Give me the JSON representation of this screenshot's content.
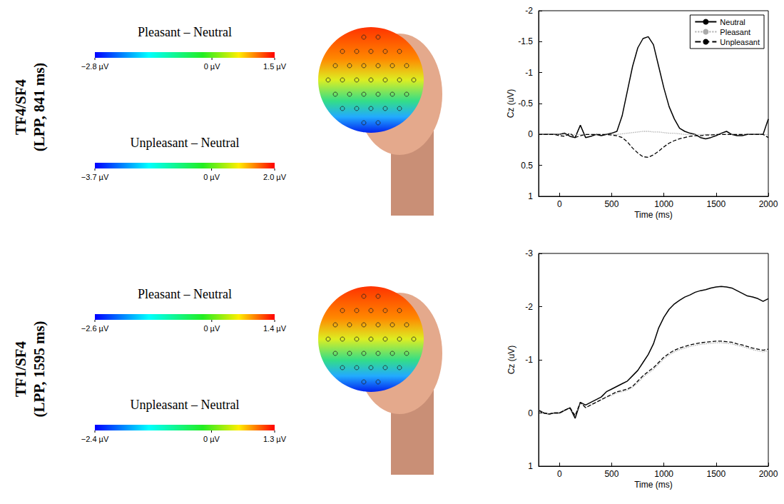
{
  "chart_data": [
    {
      "type": "line",
      "row_label": [
        "TF4/SF4",
        "(LPP, 841 ms)"
      ],
      "maps": [
        {
          "title": "Pleasant – Neutral",
          "range": [
            -2.8,
            1.5
          ],
          "ticks": [
            {
              "value": -2.8,
              "label": "−2.8 µV"
            },
            {
              "value": 0,
              "label": "0 µV"
            },
            {
              "value": 1.5,
              "label": "1.5 µV"
            }
          ]
        },
        {
          "title": "Unpleasant – Neutral",
          "range": [
            -3.7,
            2.0
          ],
          "ticks": [
            {
              "value": -3.7,
              "label": "−3.7 µV"
            },
            {
              "value": 0,
              "label": "0 µV"
            },
            {
              "value": 2.0,
              "label": "2.0 µV"
            }
          ]
        }
      ],
      "x_label": "Time (ms)",
      "y_label": "Cz (uV)",
      "xlim": [
        -200,
        2000
      ],
      "xticks": [
        0,
        500,
        1000,
        1500,
        2000
      ],
      "ylim": [
        -2,
        1
      ],
      "yticks": [
        -2,
        -1.5,
        -1,
        -0.5,
        0,
        0.5,
        1
      ],
      "legend": "upper right",
      "x": [
        -200,
        -150,
        -100,
        -50,
        0,
        50,
        100,
        150,
        200,
        250,
        300,
        350,
        400,
        450,
        500,
        550,
        600,
        650,
        700,
        750,
        800,
        850,
        900,
        950,
        1000,
        1050,
        1100,
        1150,
        1200,
        1250,
        1300,
        1350,
        1400,
        1450,
        1500,
        1550,
        1600,
        1650,
        1700,
        1750,
        1800,
        1850,
        1900,
        1950,
        2000
      ],
      "series": [
        {
          "name": "Neutral",
          "color": "#000000",
          "line_style": "solid",
          "values": [
            0,
            0,
            0,
            0,
            0,
            -0.02,
            0.03,
            0.05,
            -0.15,
            0.05,
            0.03,
            0,
            0.02,
            0,
            -0.02,
            -0.05,
            -0.3,
            -0.7,
            -1.1,
            -1.4,
            -1.55,
            -1.58,
            -1.45,
            -1.1,
            -0.75,
            -0.45,
            -0.25,
            -0.1,
            -0.05,
            -0.02,
            0,
            0.05,
            0.07,
            0.05,
            0.02,
            -0.02,
            -0.05,
            0,
            0.02,
            0.02,
            0,
            0,
            0,
            0,
            -0.25
          ]
        },
        {
          "name": "Pleasant",
          "color": "#aaaaaa",
          "line_style": "dotted",
          "values": [
            0,
            0,
            0,
            0,
            0,
            0,
            0,
            0,
            0,
            0,
            0,
            0,
            0,
            0,
            0,
            0,
            -0.01,
            -0.02,
            -0.03,
            -0.04,
            -0.05,
            -0.05,
            -0.04,
            -0.04,
            -0.03,
            -0.02,
            -0.02,
            -0.01,
            0,
            0,
            0,
            0,
            0,
            0,
            0,
            0,
            0,
            0,
            0,
            0,
            0,
            0,
            0,
            0,
            0
          ]
        },
        {
          "name": "Unpleasant",
          "color": "#000000",
          "line_style": "dashed",
          "values": [
            0,
            0,
            0,
            0,
            0.02,
            0.03,
            -0.02,
            0.05,
            0.02,
            0,
            0,
            0,
            0,
            0,
            0.01,
            0.02,
            0.05,
            0.12,
            0.22,
            0.3,
            0.36,
            0.37,
            0.33,
            0.27,
            0.2,
            0.14,
            0.1,
            0.07,
            0.05,
            0.03,
            0.02,
            0.02,
            0.01,
            0.01,
            0,
            0,
            0,
            0,
            0,
            0,
            0,
            0,
            0,
            0,
            0.05
          ]
        }
      ]
    },
    {
      "type": "line",
      "row_label": [
        "TF1/SF4",
        "(LPP, 1595 ms)"
      ],
      "maps": [
        {
          "title": "Pleasant – Neutral",
          "range": [
            -2.6,
            1.4
          ],
          "ticks": [
            {
              "value": -2.6,
              "label": "−2.6 µV"
            },
            {
              "value": 0,
              "label": "0 µV"
            },
            {
              "value": 1.4,
              "label": "1.4 µV"
            }
          ]
        },
        {
          "title": "Unpleasant – Neutral",
          "range": [
            -2.4,
            1.3
          ],
          "ticks": [
            {
              "value": -2.4,
              "label": "−2.4 µV"
            },
            {
              "value": 0,
              "label": "0 µV"
            },
            {
              "value": 1.3,
              "label": "1.3 µV"
            }
          ]
        }
      ],
      "x_label": "Time (ms)",
      "y_label": "Cz (uV)",
      "xlim": [
        -200,
        2000
      ],
      "xticks": [
        0,
        500,
        1000,
        1500,
        2000
      ],
      "ylim": [
        -3,
        1
      ],
      "yticks": [
        -3,
        -2,
        -1,
        0,
        1
      ],
      "x": [
        -200,
        -150,
        -100,
        -50,
        0,
        50,
        100,
        150,
        200,
        250,
        300,
        350,
        400,
        450,
        500,
        550,
        600,
        650,
        700,
        750,
        800,
        850,
        900,
        950,
        1000,
        1050,
        1100,
        1150,
        1200,
        1250,
        1300,
        1350,
        1400,
        1450,
        1500,
        1550,
        1600,
        1650,
        1700,
        1750,
        1800,
        1850,
        1900,
        1950,
        2000
      ],
      "series": [
        {
          "name": "Neutral",
          "color": "#000000",
          "line_style": "solid",
          "values": [
            -0.05,
            0,
            0.02,
            0,
            0,
            -0.05,
            -0.1,
            0.1,
            -0.2,
            -0.15,
            -0.2,
            -0.25,
            -0.3,
            -0.4,
            -0.45,
            -0.5,
            -0.55,
            -0.6,
            -0.7,
            -0.8,
            -0.95,
            -1.1,
            -1.3,
            -1.6,
            -1.8,
            -1.95,
            -2.05,
            -2.12,
            -2.18,
            -2.22,
            -2.27,
            -2.3,
            -2.32,
            -2.35,
            -2.37,
            -2.38,
            -2.37,
            -2.35,
            -2.3,
            -2.25,
            -2.2,
            -2.18,
            -2.15,
            -2.1,
            -2.15
          ]
        },
        {
          "name": "Pleasant",
          "color": "#aaaaaa",
          "line_style": "dotted",
          "values": [
            -0.05,
            0,
            0.02,
            0,
            0,
            -0.05,
            -0.1,
            0.05,
            -0.2,
            -0.1,
            -0.15,
            -0.2,
            -0.25,
            -0.3,
            -0.33,
            -0.38,
            -0.4,
            -0.43,
            -0.48,
            -0.57,
            -0.67,
            -0.75,
            -0.82,
            -0.92,
            -1.02,
            -1.09,
            -1.15,
            -1.19,
            -1.22,
            -1.25,
            -1.27,
            -1.29,
            -1.3,
            -1.31,
            -1.32,
            -1.32,
            -1.31,
            -1.3,
            -1.27,
            -1.25,
            -1.22,
            -1.19,
            -1.17,
            -1.15,
            -1.17
          ]
        },
        {
          "name": "Unpleasant",
          "color": "#000000",
          "line_style": "dashed",
          "values": [
            -0.05,
            0,
            0.02,
            0,
            0,
            -0.05,
            -0.1,
            0.05,
            -0.2,
            -0.1,
            -0.15,
            -0.2,
            -0.25,
            -0.3,
            -0.35,
            -0.4,
            -0.42,
            -0.45,
            -0.5,
            -0.6,
            -0.7,
            -0.78,
            -0.85,
            -0.95,
            -1.05,
            -1.12,
            -1.18,
            -1.22,
            -1.25,
            -1.28,
            -1.3,
            -1.32,
            -1.33,
            -1.34,
            -1.35,
            -1.35,
            -1.34,
            -1.33,
            -1.3,
            -1.28,
            -1.25,
            -1.22,
            -1.2,
            -1.18,
            -1.2
          ]
        }
      ]
    }
  ]
}
